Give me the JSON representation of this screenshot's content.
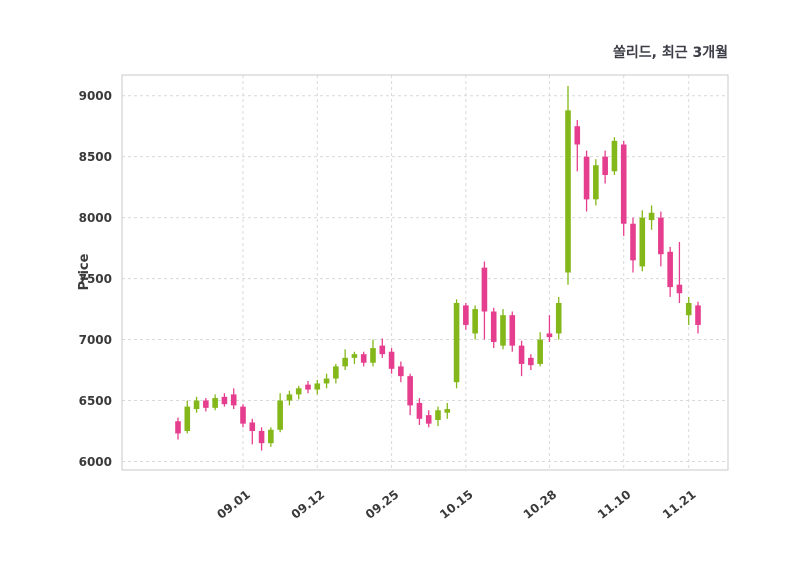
{
  "chart_data": {
    "type": "candlestick",
    "title": "쏠리드, 최근 3개월",
    "ylabel": "Price",
    "xlabel": "",
    "ylim": [
      5930,
      9170
    ],
    "y_ticks": [
      6000,
      6500,
      7000,
      7500,
      8000,
      8500,
      9000
    ],
    "x_tick_labels": [
      "09.01",
      "09.12",
      "09.25",
      "10.15",
      "10.28",
      "11.10",
      "11.21"
    ],
    "x_tick_indices": [
      7,
      15,
      23,
      31,
      40,
      48,
      55
    ],
    "grid": "dashed",
    "legend": "none",
    "up_color": "#84b81a",
    "down_color": "#e63e8e",
    "ohlc_columns": [
      "open",
      "high",
      "low",
      "close"
    ],
    "ohlc": [
      [
        6330,
        6360,
        6180,
        6230
      ],
      [
        6250,
        6500,
        6230,
        6450
      ],
      [
        6430,
        6530,
        6400,
        6500
      ],
      [
        6500,
        6520,
        6410,
        6440
      ],
      [
        6440,
        6550,
        6420,
        6520
      ],
      [
        6530,
        6560,
        6450,
        6470
      ],
      [
        6550,
        6600,
        6430,
        6460
      ],
      [
        6450,
        6470,
        6280,
        6310
      ],
      [
        6320,
        6350,
        6140,
        6250
      ],
      [
        6250,
        6280,
        6090,
        6150
      ],
      [
        6150,
        6280,
        6120,
        6260
      ],
      [
        6260,
        6560,
        6240,
        6500
      ],
      [
        6500,
        6580,
        6460,
        6550
      ],
      [
        6550,
        6620,
        6510,
        6600
      ],
      [
        6630,
        6660,
        6560,
        6590
      ],
      [
        6590,
        6670,
        6550,
        6640
      ],
      [
        6640,
        6720,
        6600,
        6680
      ],
      [
        6680,
        6800,
        6640,
        6780
      ],
      [
        6780,
        6920,
        6750,
        6850
      ],
      [
        6850,
        6900,
        6800,
        6880
      ],
      [
        6880,
        6900,
        6780,
        6810
      ],
      [
        6810,
        7000,
        6780,
        6930
      ],
      [
        6950,
        7010,
        6850,
        6880
      ],
      [
        6900,
        6930,
        6720,
        6760
      ],
      [
        6780,
        6820,
        6650,
        6700
      ],
      [
        6700,
        6720,
        6380,
        6460
      ],
      [
        6480,
        6520,
        6300,
        6350
      ],
      [
        6380,
        6420,
        6280,
        6310
      ],
      [
        6340,
        6450,
        6290,
        6420
      ],
      [
        6400,
        6480,
        6350,
        6430
      ],
      [
        6650,
        7330,
        6600,
        7300
      ],
      [
        7280,
        7300,
        7080,
        7120
      ],
      [
        7050,
        7280,
        7000,
        7250
      ],
      [
        7590,
        7640,
        7000,
        7230
      ],
      [
        7230,
        7260,
        6930,
        6980
      ],
      [
        6950,
        7250,
        6920,
        7200
      ],
      [
        7200,
        7230,
        6900,
        6950
      ],
      [
        6950,
        6990,
        6700,
        6800
      ],
      [
        6850,
        6880,
        6750,
        6790
      ],
      [
        6800,
        7060,
        6780,
        7000
      ],
      [
        7050,
        7200,
        6980,
        7020
      ],
      [
        7050,
        7350,
        7000,
        7300
      ],
      [
        7550,
        9080,
        7450,
        8880
      ],
      [
        8750,
        8800,
        8380,
        8600
      ],
      [
        8500,
        8550,
        8050,
        8150
      ],
      [
        8150,
        8480,
        8100,
        8430
      ],
      [
        8500,
        8550,
        8280,
        8350
      ],
      [
        8380,
        8660,
        8350,
        8630
      ],
      [
        8600,
        8630,
        7850,
        7950
      ],
      [
        7950,
        8000,
        7550,
        7650
      ],
      [
        7600,
        8060,
        7560,
        8000
      ],
      [
        7980,
        8100,
        7900,
        8040
      ],
      [
        8000,
        8050,
        7600,
        7700
      ],
      [
        7720,
        7760,
        7350,
        7430
      ],
      [
        7450,
        7800,
        7300,
        7380
      ],
      [
        7200,
        7350,
        7120,
        7300
      ],
      [
        7280,
        7310,
        7050,
        7120
      ]
    ]
  }
}
